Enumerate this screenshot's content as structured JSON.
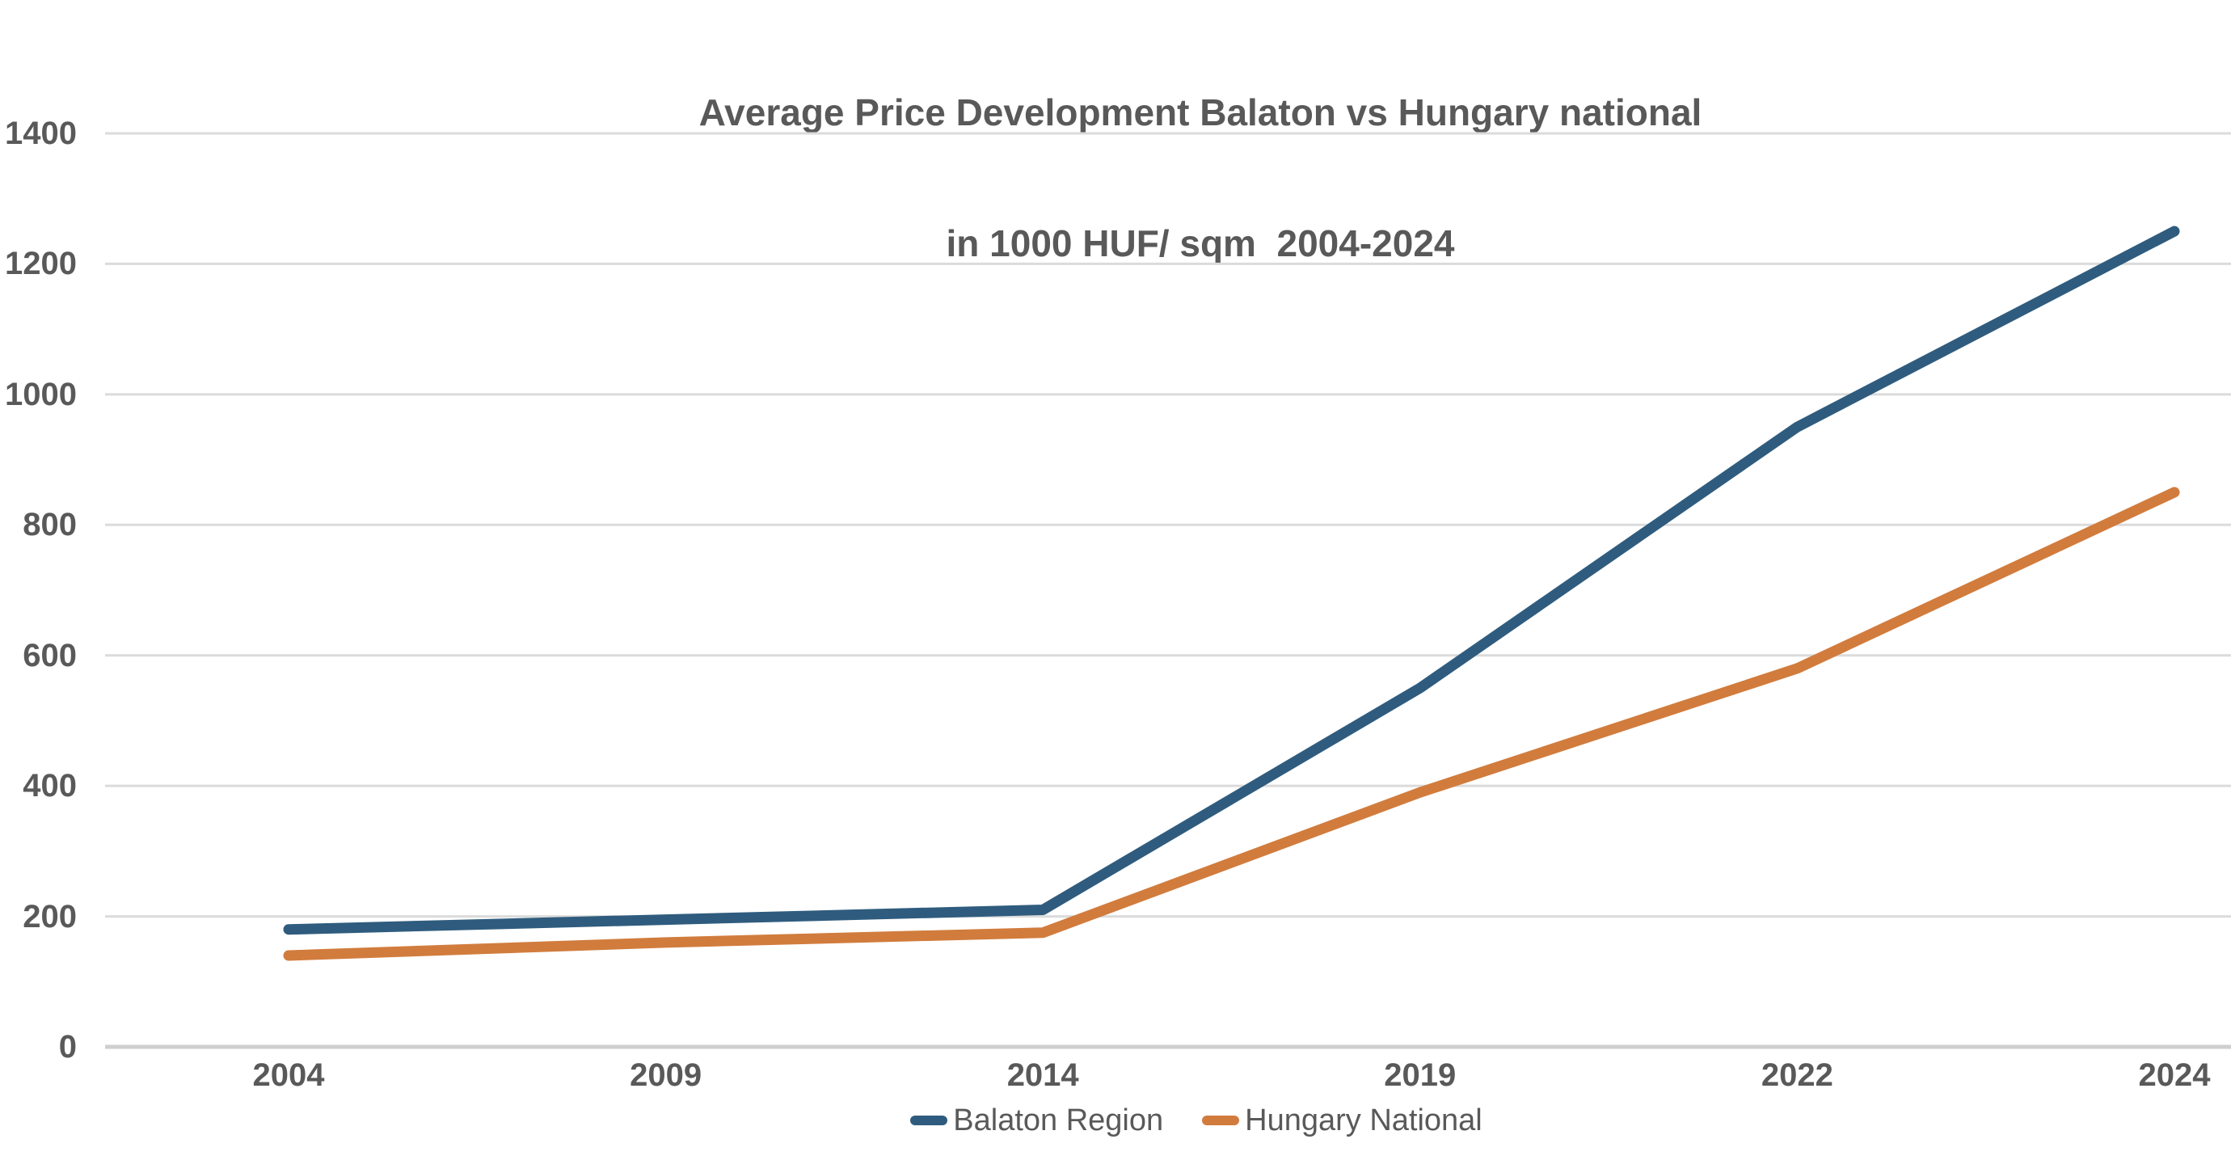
{
  "title": {
    "line1": "Average Price Development Balaton vs Hungary national",
    "line2": "in 1000 HUF/ sqm  2004-2024"
  },
  "colors": {
    "text_gray": "#595959",
    "gridline": "#DBDBDB",
    "axis_line": "#CFCFCF",
    "balaton_blue": "#2F5C7E",
    "hungary_orange": "#D17C3D",
    "background": "#FFFFFF"
  },
  "chart_data": {
    "type": "line",
    "title": "Average Price Development Balaton vs Hungary national in 1000 HUF/ sqm 2004-2024",
    "xlabel": "",
    "ylabel": "",
    "categories": [
      "2004",
      "2009",
      "2014",
      "2019",
      "2022",
      "2024"
    ],
    "series": [
      {
        "name": "Balaton Region",
        "color": "#2F5C7E",
        "values": [
          180,
          195,
          210,
          550,
          950,
          1250
        ]
      },
      {
        "name": "Hungary National",
        "color": "#D17C3D",
        "values": [
          140,
          160,
          175,
          390,
          580,
          850
        ]
      }
    ],
    "ylim": [
      0,
      1400
    ],
    "yticks": [
      0,
      200,
      400,
      600,
      800,
      1000,
      1200,
      1400
    ],
    "grid": "horizontal-only",
    "legend_position": "bottom-center"
  },
  "legend": {
    "items": [
      {
        "label": "Balaton Region"
      },
      {
        "label": "Hungary National"
      }
    ]
  }
}
